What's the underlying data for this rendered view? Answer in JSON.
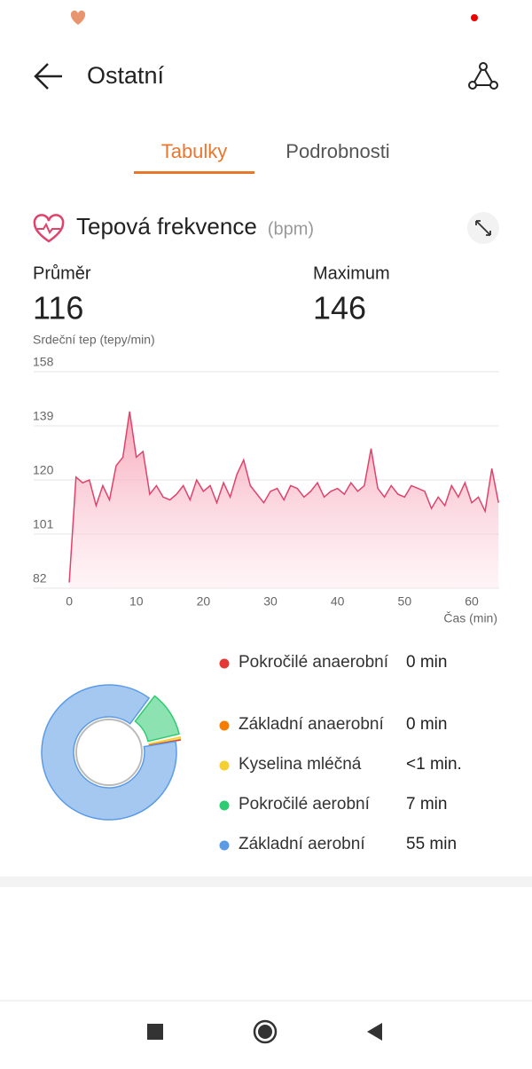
{
  "header": {
    "title": "Ostatní"
  },
  "tabs": [
    "Tabulky",
    "Podrobnosti"
  ],
  "section": {
    "title": "Tepová frekvence",
    "unit": "(bpm)"
  },
  "stats": [
    {
      "label": "Průměr",
      "value": 116
    },
    {
      "label": "Maximum",
      "value": 146
    }
  ],
  "chart_data": [
    {
      "type": "line",
      "ylabel": "Srdeční tep (tepy/min)",
      "xlabel": "Čas (min)",
      "color": "#e0426a",
      "x": [
        0,
        1,
        2,
        3,
        4,
        5,
        6,
        7,
        8,
        9,
        10,
        11,
        12,
        13,
        14,
        15,
        16,
        17,
        18,
        19,
        20,
        21,
        22,
        23,
        24,
        25,
        26,
        27,
        28,
        29,
        30,
        31,
        32,
        33,
        34,
        35,
        36,
        37,
        38,
        39,
        40,
        41,
        42,
        43,
        44,
        45,
        46,
        47,
        48,
        49,
        50,
        51,
        52,
        53,
        54,
        55,
        56,
        57,
        58,
        59,
        60,
        61,
        62,
        63,
        64
      ],
      "values": [
        84,
        121,
        119,
        120,
        111,
        118,
        113,
        125,
        128,
        144,
        128,
        130,
        115,
        118,
        114,
        113,
        115,
        118,
        113,
        120,
        116,
        118,
        112,
        119,
        114,
        122,
        127,
        118,
        115,
        112,
        116,
        117,
        113,
        118,
        117,
        114,
        116,
        119,
        114,
        116,
        117,
        115,
        119,
        116,
        118,
        131,
        117,
        114,
        118,
        115,
        114,
        118,
        117,
        116,
        110,
        114,
        111,
        118,
        114,
        119,
        112,
        114,
        109,
        124,
        112
      ],
      "xlim": [
        -5.3,
        64.1
      ],
      "ylim": [
        82,
        158
      ],
      "xticks": [
        0,
        10,
        20,
        30,
        40,
        50,
        60
      ],
      "yticks": [
        82,
        101,
        120,
        139,
        158
      ],
      "grid": true
    },
    {
      "type": "donut",
      "categories": [
        "Pokročilé anaerobní",
        "Základní anaerobní",
        "Kyselina mléčná",
        "Pokročilé aerobní",
        "Základní aerobní"
      ],
      "values": [
        0,
        0,
        0.5,
        7,
        55
      ],
      "value_labels": [
        "0 min",
        "0 min",
        "<1 min.",
        "7 min",
        "55 min"
      ],
      "colors": [
        "#e53935",
        "#f57c00",
        "#f5d033",
        "#2ecc71",
        "#5b9be6"
      ]
    }
  ]
}
